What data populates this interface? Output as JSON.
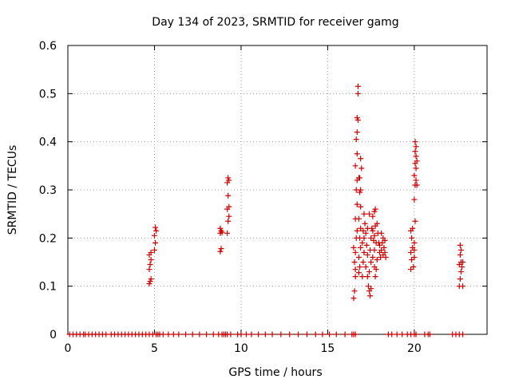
{
  "chart_data": {
    "type": "scatter",
    "title": "Day 134 of 2023, SRMTID for receiver gamg",
    "xlabel": "GPS time / hours",
    "ylabel": "SRMTID / TECUs",
    "xlim": [
      0,
      24.2
    ],
    "ylim": [
      0,
      0.6
    ],
    "xticks": [
      0,
      5,
      10,
      15,
      20
    ],
    "yticks": [
      0,
      0.1,
      0.2,
      0.3,
      0.4,
      0.5,
      0.6
    ],
    "xtick_labels": [
      "0",
      "5",
      "10",
      "15",
      "20"
    ],
    "ytick_labels": [
      "0",
      "0.1",
      "0.2",
      "0.3",
      "0.4",
      "0.5",
      "0.6"
    ],
    "grid": true,
    "marker": "+",
    "series": [
      {
        "name": "SRMTID",
        "color": "#cc0000",
        "points": [
          [
            0.1,
            0
          ],
          [
            0.3,
            0
          ],
          [
            0.5,
            0
          ],
          [
            0.7,
            0
          ],
          [
            0.9,
            0
          ],
          [
            1.0,
            0
          ],
          [
            1.2,
            0
          ],
          [
            1.4,
            0
          ],
          [
            1.6,
            0
          ],
          [
            1.8,
            0
          ],
          [
            2.0,
            0
          ],
          [
            2.2,
            0
          ],
          [
            2.5,
            0
          ],
          [
            2.7,
            0
          ],
          [
            2.9,
            0
          ],
          [
            3.1,
            0
          ],
          [
            3.3,
            0
          ],
          [
            3.5,
            0
          ],
          [
            3.7,
            0
          ],
          [
            3.9,
            0
          ],
          [
            4.1,
            0
          ],
          [
            4.3,
            0
          ],
          [
            4.5,
            0
          ],
          [
            4.7,
            0
          ],
          [
            4.9,
            0
          ],
          [
            5.1,
            0
          ],
          [
            5.2,
            0
          ],
          [
            5.3,
            0
          ],
          [
            5.5,
            0
          ],
          [
            5.8,
            0
          ],
          [
            6.1,
            0
          ],
          [
            6.4,
            0
          ],
          [
            6.8,
            0
          ],
          [
            7.2,
            0
          ],
          [
            7.6,
            0
          ],
          [
            8.0,
            0
          ],
          [
            8.4,
            0
          ],
          [
            8.7,
            0
          ],
          [
            8.9,
            0
          ],
          [
            9.0,
            0
          ],
          [
            9.1,
            0
          ],
          [
            9.2,
            0
          ],
          [
            9.4,
            0
          ],
          [
            9.8,
            0
          ],
          [
            10.0,
            0
          ],
          [
            10.3,
            0
          ],
          [
            10.6,
            0
          ],
          [
            11.0,
            0
          ],
          [
            11.4,
            0
          ],
          [
            11.8,
            0
          ],
          [
            12.3,
            0
          ],
          [
            12.8,
            0
          ],
          [
            13.3,
            0
          ],
          [
            13.8,
            0
          ],
          [
            14.3,
            0
          ],
          [
            14.7,
            0
          ],
          [
            15.1,
            0
          ],
          [
            15.5,
            0
          ],
          [
            16.0,
            0
          ],
          [
            16.4,
            0
          ],
          [
            16.5,
            0
          ],
          [
            16.6,
            0
          ],
          [
            18.5,
            0
          ],
          [
            18.7,
            0
          ],
          [
            19.0,
            0
          ],
          [
            19.3,
            0
          ],
          [
            19.6,
            0
          ],
          [
            19.8,
            0
          ],
          [
            20.0,
            0
          ],
          [
            20.1,
            0
          ],
          [
            20.6,
            0
          ],
          [
            20.8,
            0
          ],
          [
            20.9,
            0
          ],
          [
            22.2,
            0
          ],
          [
            22.4,
            0
          ],
          [
            22.6,
            0
          ],
          [
            22.8,
            0
          ],
          [
            4.7,
            0.105
          ],
          [
            4.75,
            0.11
          ],
          [
            4.8,
            0.115
          ],
          [
            4.7,
            0.135
          ],
          [
            4.75,
            0.145
          ],
          [
            4.8,
            0.155
          ],
          [
            4.7,
            0.165
          ],
          [
            4.8,
            0.17
          ],
          [
            5.0,
            0.175
          ],
          [
            5.05,
            0.19
          ],
          [
            5.0,
            0.205
          ],
          [
            5.1,
            0.215
          ],
          [
            5.05,
            0.222
          ],
          [
            8.8,
            0.172
          ],
          [
            8.85,
            0.178
          ],
          [
            8.8,
            0.21
          ],
          [
            8.9,
            0.212
          ],
          [
            8.85,
            0.215
          ],
          [
            8.8,
            0.22
          ],
          [
            9.2,
            0.21
          ],
          [
            9.25,
            0.235
          ],
          [
            9.3,
            0.245
          ],
          [
            9.2,
            0.26
          ],
          [
            9.3,
            0.265
          ],
          [
            9.25,
            0.288
          ],
          [
            9.2,
            0.315
          ],
          [
            9.3,
            0.32
          ],
          [
            9.25,
            0.325
          ],
          [
            16.5,
            0.075
          ],
          [
            16.55,
            0.09
          ],
          [
            16.6,
            0.12
          ],
          [
            16.6,
            0.135
          ],
          [
            16.55,
            0.15
          ],
          [
            16.6,
            0.17
          ],
          [
            16.5,
            0.18
          ],
          [
            16.65,
            0.2
          ],
          [
            16.7,
            0.215
          ],
          [
            16.6,
            0.24
          ],
          [
            16.7,
            0.27
          ],
          [
            16.65,
            0.3
          ],
          [
            16.7,
            0.32
          ],
          [
            16.6,
            0.35
          ],
          [
            16.7,
            0.375
          ],
          [
            16.65,
            0.405
          ],
          [
            16.7,
            0.42
          ],
          [
            16.75,
            0.445
          ],
          [
            16.7,
            0.45
          ],
          [
            16.75,
            0.5
          ],
          [
            16.75,
            0.515
          ],
          [
            16.8,
            0.128
          ],
          [
            16.85,
            0.14
          ],
          [
            16.8,
            0.16
          ],
          [
            16.9,
            0.18
          ],
          [
            16.85,
            0.2
          ],
          [
            16.9,
            0.22
          ],
          [
            16.8,
            0.24
          ],
          [
            16.9,
            0.265
          ],
          [
            16.85,
            0.295
          ],
          [
            16.9,
            0.3
          ],
          [
            16.8,
            0.325
          ],
          [
            16.95,
            0.345
          ],
          [
            16.9,
            0.365
          ],
          [
            16.85,
            0.325
          ],
          [
            17.0,
            0.12
          ],
          [
            17.05,
            0.15
          ],
          [
            17.1,
            0.17
          ],
          [
            17.0,
            0.19
          ],
          [
            17.1,
            0.2
          ],
          [
            17.05,
            0.215
          ],
          [
            17.15,
            0.23
          ],
          [
            17.2,
            0.21
          ],
          [
            17.25,
            0.185
          ],
          [
            17.3,
            0.165
          ],
          [
            17.2,
            0.14
          ],
          [
            17.3,
            0.12
          ],
          [
            17.35,
            0.1
          ],
          [
            17.4,
            0.09
          ],
          [
            17.45,
            0.08
          ],
          [
            17.5,
            0.095
          ],
          [
            17.4,
            0.13
          ],
          [
            17.5,
            0.15
          ],
          [
            17.45,
            0.175
          ],
          [
            17.5,
            0.2
          ],
          [
            17.55,
            0.22
          ],
          [
            17.6,
            0.215
          ],
          [
            17.65,
            0.195
          ],
          [
            17.7,
            0.175
          ],
          [
            17.6,
            0.16
          ],
          [
            17.7,
            0.14
          ],
          [
            17.75,
            0.12
          ],
          [
            17.8,
            0.135
          ],
          [
            17.85,
            0.155
          ],
          [
            17.8,
            0.19
          ],
          [
            17.7,
            0.205
          ],
          [
            17.75,
            0.225
          ],
          [
            17.85,
            0.23
          ],
          [
            17.6,
            0.245
          ],
          [
            17.7,
            0.255
          ],
          [
            17.75,
            0.26
          ],
          [
            17.9,
            0.21
          ],
          [
            17.95,
            0.19
          ],
          [
            18.0,
            0.17
          ],
          [
            18.05,
            0.16
          ],
          [
            18.1,
            0.175
          ],
          [
            18.15,
            0.19
          ],
          [
            18.2,
            0.2
          ],
          [
            18.1,
            0.21
          ],
          [
            18.25,
            0.18
          ],
          [
            18.3,
            0.17
          ],
          [
            18.2,
            0.165
          ],
          [
            18.3,
            0.195
          ],
          [
            18.0,
            0.185
          ],
          [
            18.35,
            0.16
          ],
          [
            17.4,
            0.25
          ],
          [
            17.3,
            0.22
          ],
          [
            17.1,
            0.25
          ],
          [
            19.8,
            0.135
          ],
          [
            19.85,
            0.155
          ],
          [
            19.8,
            0.17
          ],
          [
            19.9,
            0.18
          ],
          [
            19.85,
            0.2
          ],
          [
            19.8,
            0.215
          ],
          [
            19.9,
            0.22
          ],
          [
            19.95,
            0.14
          ],
          [
            20.0,
            0.16
          ],
          [
            20.0,
            0.175
          ],
          [
            20.0,
            0.19
          ],
          [
            20.05,
            0.235
          ],
          [
            20.0,
            0.28
          ],
          [
            20.05,
            0.31
          ],
          [
            20.1,
            0.32
          ],
          [
            20.0,
            0.33
          ],
          [
            20.1,
            0.345
          ],
          [
            20.05,
            0.355
          ],
          [
            20.15,
            0.36
          ],
          [
            20.1,
            0.37
          ],
          [
            20.05,
            0.38
          ],
          [
            20.1,
            0.39
          ],
          [
            20.05,
            0.4
          ],
          [
            20.15,
            0.31
          ],
          [
            22.6,
            0.1
          ],
          [
            22.65,
            0.115
          ],
          [
            22.7,
            0.13
          ],
          [
            22.6,
            0.145
          ],
          [
            22.7,
            0.15
          ],
          [
            22.65,
            0.165
          ],
          [
            22.7,
            0.175
          ],
          [
            22.65,
            0.185
          ],
          [
            22.8,
            0.1
          ],
          [
            22.75,
            0.14
          ],
          [
            22.8,
            0.15
          ]
        ]
      }
    ]
  }
}
